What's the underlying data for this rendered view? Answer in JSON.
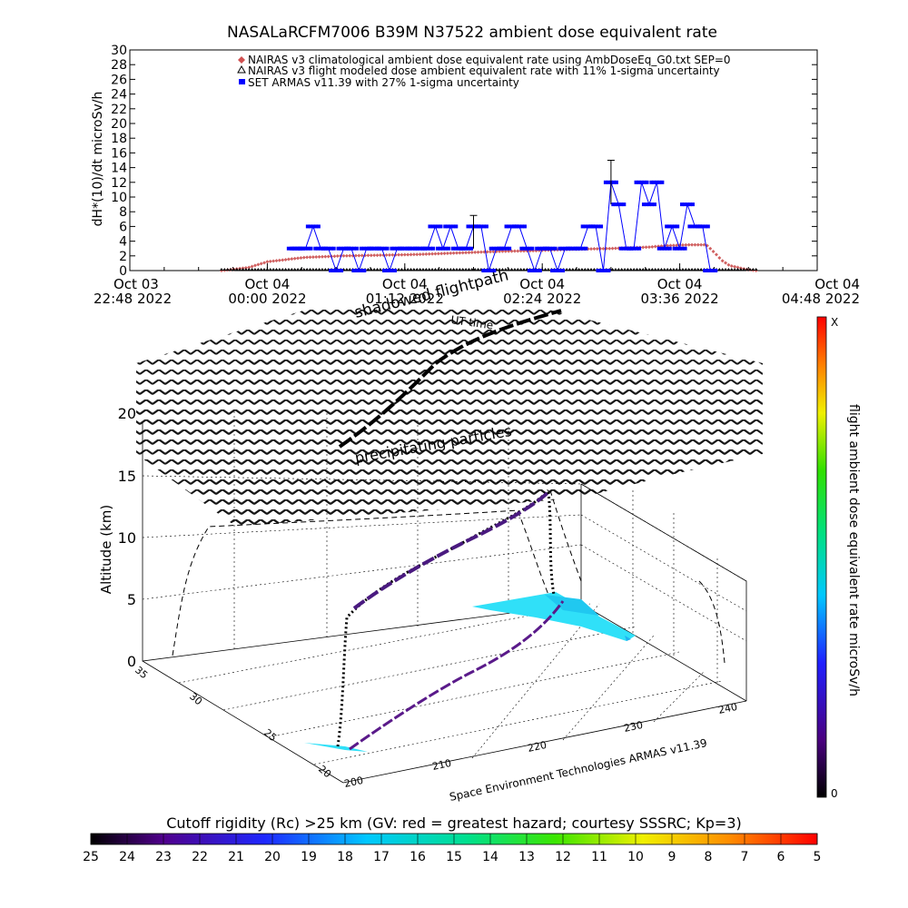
{
  "chart_data": [
    {
      "type": "line",
      "title": "NASALaRCFM7006  B39M N37522 ambient dose equivalent rate",
      "ylabel": "dH*(10)/dt microSv/h",
      "ylim": [
        0,
        30
      ],
      "ytick_step": 2,
      "xlim_minutes": [
        -72,
        288
      ],
      "x_ticks": [
        {
          "line1": "Oct 03",
          "line2": "22:48 2022"
        },
        {
          "line1": "Oct 04",
          "line2": "00:00 2022"
        },
        {
          "line1": "Oct 04",
          "line2": "01:12 2022"
        },
        {
          "line1": "Oct 04",
          "line2": "02:24 2022"
        },
        {
          "line1": "Oct 04",
          "line2": "03:36 2022"
        },
        {
          "line1": "Oct 04",
          "line2": "04:48 2022"
        }
      ],
      "legend": [
        {
          "label": "NAIRAS v3 climatological ambient dose equivalent rate using AmbDoseEq_G0.txt SEP=0",
          "color": "#d05050",
          "marker": "diamond"
        },
        {
          "label": "NAIRAS v3 flight modeled dose ambient equivalent rate with 11% 1-sigma uncertainty",
          "color": "#000000",
          "marker": "triangle"
        },
        {
          "label": "SET ARMAS v11.39 with 27% 1-sigma uncertainty",
          "color": "#0000ff",
          "marker": "square"
        }
      ],
      "series": [
        {
          "name": "NAIRAS v3 climatological ambient dose equivalent rate using AmbDoseEq_G0.txt SEP=0",
          "x": [
            -24,
            -10,
            0,
            20,
            40,
            60,
            80,
            100,
            120,
            140,
            160,
            180,
            200,
            210,
            220,
            230,
            234,
            238,
            242,
            250,
            256
          ],
          "y": [
            0,
            0.4,
            1.2,
            1.8,
            2.0,
            2.1,
            2.2,
            2.4,
            2.6,
            2.7,
            2.9,
            3.0,
            3.2,
            3.4,
            3.5,
            3.5,
            2.5,
            1.4,
            0.7,
            0.2,
            0
          ]
        },
        {
          "name": "NAIRAS v3 flight modeled dose ambient equivalent rate with 11% 1-sigma uncertainty",
          "x": [
            -24,
            256
          ],
          "y": [
            0,
            0
          ]
        },
        {
          "name": "SET ARMAS v11.39 with 27% 1-sigma uncertainty",
          "x": [
            14,
            16,
            20,
            24,
            28,
            32,
            36,
            40,
            44,
            48,
            52,
            56,
            60,
            64,
            68,
            72,
            76,
            80,
            84,
            88,
            92,
            96,
            100,
            104,
            108,
            112,
            116,
            120,
            124,
            128,
            132,
            136,
            140,
            144,
            148,
            152,
            156,
            160,
            164,
            168,
            172,
            176,
            180,
            184,
            188,
            192,
            196,
            200,
            204,
            208,
            212,
            216,
            220,
            224,
            228,
            232
          ],
          "y": [
            3,
            3,
            3,
            6,
            3,
            3,
            0,
            3,
            3,
            0,
            3,
            3,
            3,
            0,
            3,
            3,
            3,
            3,
            3,
            6,
            3,
            6,
            3,
            3,
            6,
            6,
            0,
            3,
            3,
            6,
            6,
            3,
            0,
            3,
            3,
            0,
            3,
            3,
            3,
            6,
            6,
            0,
            12,
            9,
            3,
            3,
            12,
            9,
            12,
            3,
            6,
            3,
            9,
            6,
            6,
            0
          ],
          "error_bars": [
            {
              "x": 108,
              "low": 3,
              "high": 7.5
            },
            {
              "x": 180,
              "low": 9,
              "high": 15
            }
          ]
        }
      ]
    },
    {
      "type": "3d-trajectory",
      "zlabel": "Altitude (km)",
      "zlim": [
        0,
        20
      ],
      "z_ticks": [
        "0",
        "5",
        "10",
        "15",
        "20"
      ],
      "x_ticks": [
        "200",
        "210",
        "220",
        "230",
        "240"
      ],
      "y_ticks": [
        "20",
        "25",
        "30",
        "35"
      ],
      "credit": "Space Environment Technologies ARMAS v11.39",
      "annotations": [
        "shadowed flightpath",
        "UT time",
        "precipitating particles"
      ],
      "colorbar_right": {
        "label": "flight ambient dose equivalent rate microSv/h",
        "top": "X",
        "bottom": "0"
      },
      "colorbar_bottom": {
        "label": "Cutoff rigidity (Rc) >25 km (GV: red = greatest hazard; courtesy SSSRC; Kp=3)",
        "ticks": [
          "25",
          "24",
          "23",
          "22",
          "21",
          "20",
          "19",
          "18",
          "17",
          "16",
          "15",
          "14",
          "13",
          "12",
          "11",
          "10",
          "9",
          "8",
          "7",
          "6",
          "5"
        ]
      }
    }
  ]
}
